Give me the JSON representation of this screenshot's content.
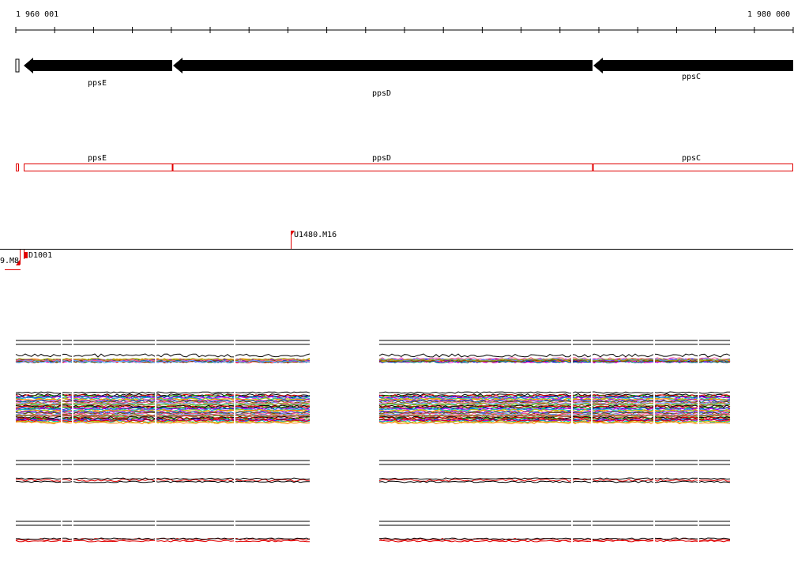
{
  "axis": {
    "start_label": "1 960 001",
    "end_label": "1 980 000"
  },
  "genes_arrow": [
    {
      "name": "ppsE"
    },
    {
      "name": "ppsD"
    },
    {
      "name": "ppsC"
    }
  ],
  "genes_box": [
    {
      "name": "ppsE"
    },
    {
      "name": "ppsD"
    },
    {
      "name": "ppsC"
    }
  ],
  "probes": [
    {
      "name": "U1480.M16"
    },
    {
      "name": "D1001"
    },
    {
      "name": "9.M8"
    }
  ],
  "colors": {
    "gene_arrow": "#000000",
    "gene_box": "#e00000",
    "probe_flag": "#e00000",
    "track_red": "#e00000",
    "track_black": "#000000"
  }
}
